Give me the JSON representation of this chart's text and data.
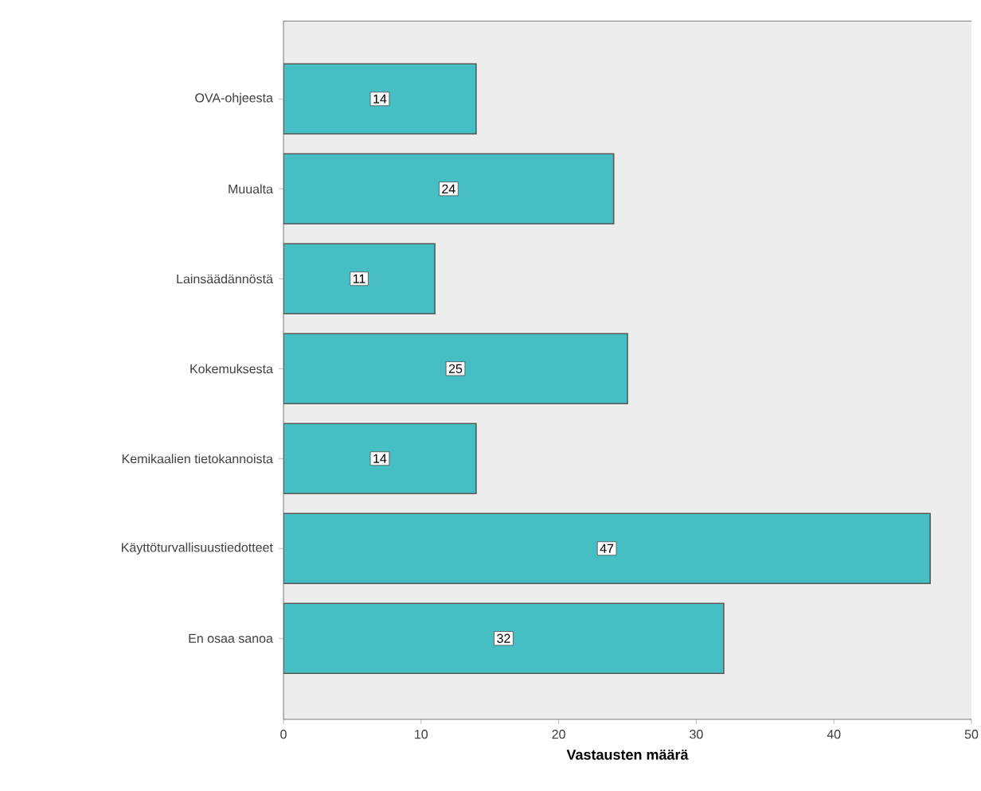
{
  "chart_data": {
    "type": "bar",
    "orientation": "horizontal",
    "xlabel": "Vastausten määrä",
    "categories": [
      "OVA-ohjeesta",
      "Muualta",
      "Lainsäädännöstä",
      "Kokemuksesta",
      "Kemikaalien tietokannoista",
      "Käyttöturvallisuustiedotteet",
      "En osaa sanoa"
    ],
    "values": [
      14,
      24,
      11,
      25,
      14,
      47,
      32
    ],
    "color": "#45bfc3",
    "xlim": [
      0,
      50
    ],
    "xticks": [
      0,
      10,
      20,
      30,
      40,
      50
    ],
    "data_labels": true
  }
}
